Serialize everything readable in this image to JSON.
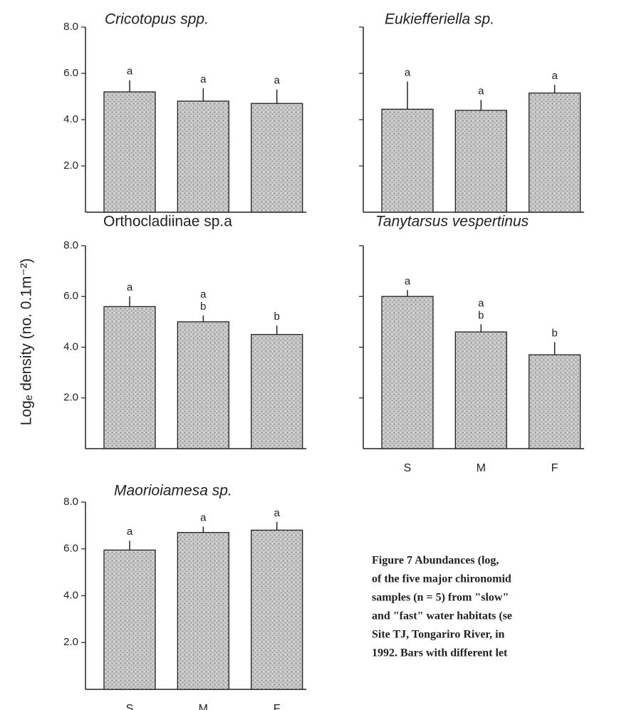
{
  "ylabel": "Logₑ density (no. 0.1m⁻²)",
  "caption": [
    "Figure 7   Abundances (log,",
    "of the five major chironomid",
    "samples (n = 5) from \"slow\"",
    "and \"fast\" water habitats (se",
    "Site TJ, Tongariro River, in",
    "1992.  Bars with different let"
  ],
  "chart_data": [
    {
      "type": "bar",
      "title": "Cricotopus spp.",
      "title_style": "italic",
      "categories": [
        null,
        null,
        null
      ],
      "values": [
        5.2,
        4.8,
        4.7
      ],
      "errors": [
        0.5,
        0.55,
        0.6
      ],
      "letters": [
        [
          "a"
        ],
        [
          "a"
        ],
        [
          "a"
        ]
      ],
      "color": "#c8c8c8",
      "ylim": [
        0,
        8
      ],
      "yticks": [
        {
          "value": 2,
          "label": "2.0"
        },
        {
          "value": 4,
          "label": "4.0"
        },
        {
          "value": 6,
          "label": "6.0"
        },
        {
          "value": 8,
          "label": "8.0"
        }
      ],
      "ytick_labels": true
    },
    {
      "type": "bar",
      "title": "Eukiefferiella sp.",
      "title_style": "italic",
      "categories": [
        null,
        null,
        null
      ],
      "values": [
        4.45,
        4.4,
        5.15
      ],
      "errors": [
        1.2,
        0.45,
        0.35
      ],
      "letters": [
        [
          "a"
        ],
        [
          "a"
        ],
        [
          "a"
        ]
      ],
      "color": "#c8c8c8",
      "ylim": [
        0,
        8
      ],
      "yticks": [
        2,
        4,
        6,
        8
      ],
      "ytick_labels": false
    },
    {
      "type": "bar",
      "title": "Orthocladiinae sp.a",
      "title_style": "normal",
      "categories": [
        null,
        null,
        null
      ],
      "values": [
        5.6,
        5.0,
        4.5
      ],
      "errors": [
        0.4,
        0.25,
        0.35
      ],
      "letters": [
        [
          "a"
        ],
        [
          "a",
          "b"
        ],
        [
          "b"
        ]
      ],
      "color": "#c8c8c8",
      "ylim": [
        0,
        8
      ],
      "yticks": [
        {
          "value": 2,
          "label": "2.0"
        },
        {
          "value": 4,
          "label": "4.0"
        },
        {
          "value": 6,
          "label": "6.0"
        },
        {
          "value": 8,
          "label": "8.0"
        }
      ],
      "ytick_labels": true
    },
    {
      "type": "bar",
      "title": "Tanytarsus vespertinus",
      "title_style": "italic",
      "categories": [
        "S",
        "M",
        "F"
      ],
      "values": [
        6.0,
        4.6,
        3.7
      ],
      "errors": [
        0.25,
        0.3,
        0.5
      ],
      "letters": [
        [
          "a"
        ],
        [
          "a",
          "b"
        ],
        [
          "b"
        ]
      ],
      "color": "#c8c8c8",
      "ylim": [
        0,
        8
      ],
      "yticks": [
        2,
        4,
        6,
        8
      ],
      "ytick_labels": false
    },
    {
      "type": "bar",
      "title": "Maorioiamesa sp.",
      "title_style": "italic",
      "categories": [
        "S",
        "M",
        "F"
      ],
      "values": [
        5.95,
        6.7,
        6.8
      ],
      "errors": [
        0.4,
        0.25,
        0.35
      ],
      "letters": [
        [
          "a"
        ],
        [
          "a"
        ],
        [
          "a"
        ]
      ],
      "color": "#c8c8c8",
      "ylim": [
        0,
        8
      ],
      "yticks": [
        {
          "value": 2,
          "label": "2.0"
        },
        {
          "value": 4,
          "label": "4.0"
        },
        {
          "value": 6,
          "label": "6.0"
        },
        {
          "value": 8,
          "label": "8.0"
        }
      ],
      "ytick_labels": true
    }
  ]
}
